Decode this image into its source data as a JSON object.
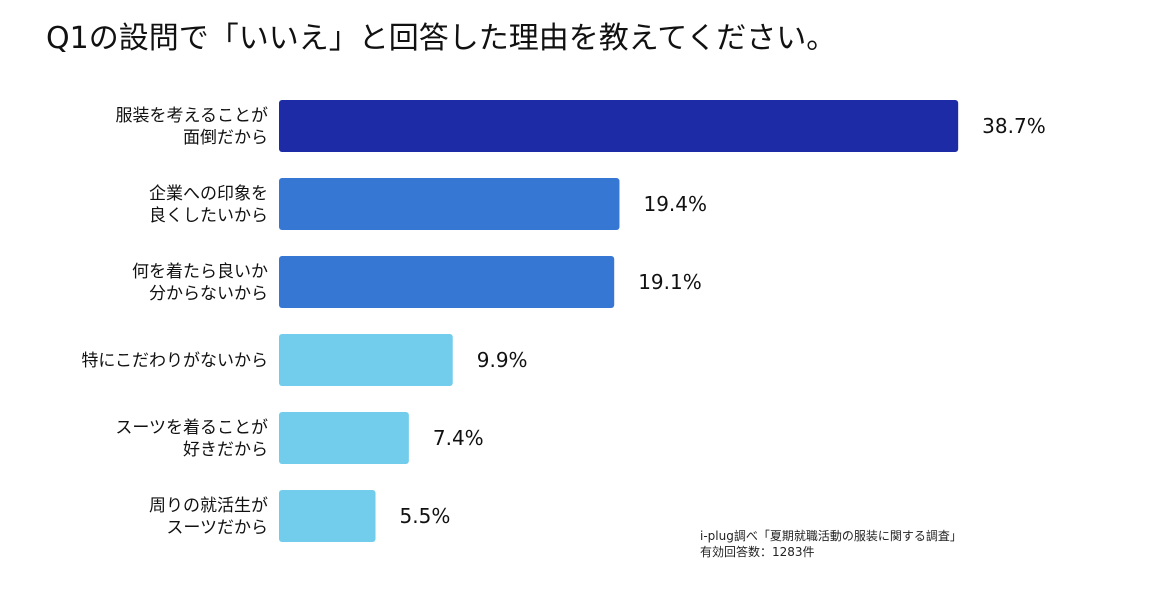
{
  "chart_data": {
    "type": "bar",
    "orientation": "horizontal",
    "title": "Q1の設問で「いいえ」と回答した理由を教えてください。",
    "xlabel": "",
    "ylabel": "",
    "xlim": [
      0,
      42
    ],
    "unit": "%",
    "categories": [
      [
        "服装を考えることが",
        "面倒だから"
      ],
      [
        "企業への印象を",
        "良くしたいから"
      ],
      [
        "何を着たら良いか",
        "分からないから"
      ],
      [
        "特にこだわりがないから"
      ],
      [
        "スーツを着ることが",
        "好きだから"
      ],
      [
        "周りの就活生が",
        "スーツだから"
      ]
    ],
    "values": [
      38.7,
      19.4,
      19.1,
      9.9,
      7.4,
      5.5
    ],
    "value_labels": [
      "38.7%",
      "19.4%",
      "19.1%",
      "9.9%",
      "7.4%",
      "5.5%"
    ],
    "colors": [
      "#1e2ba6",
      "#3677d4",
      "#3677d4",
      "#72cdec",
      "#72cdec",
      "#72cdec"
    ]
  },
  "source": {
    "line1": "i-plug調べ「夏期就職活動の服装に関する調査」",
    "line2": "有効回答数：1283件"
  }
}
